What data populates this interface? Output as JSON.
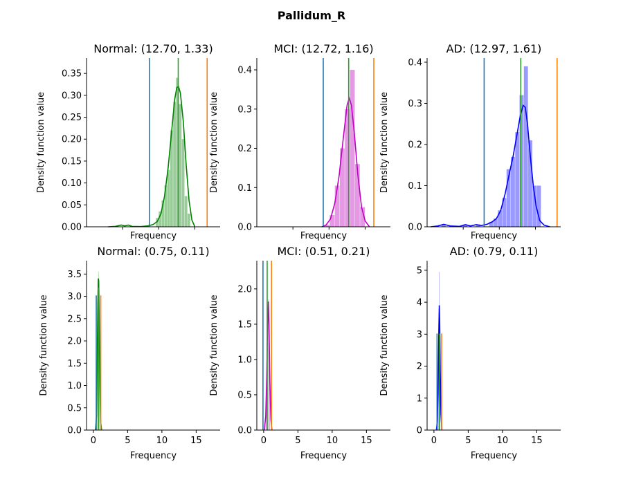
{
  "figure": {
    "suptitle": "Pallidum_R",
    "colors": {
      "Normal": "#008000",
      "MCI": "#bf00bf",
      "AD": "#0000ff",
      "line_blue": "#1f77b4",
      "line_green": "#2ca02c",
      "line_orange": "#ff7f0e"
    }
  },
  "chart_data": [
    {
      "type": "bar",
      "group": "Normal",
      "row": 0,
      "title": "Normal: (12.70, 1.33)",
      "xlabel": "Frequency",
      "ylabel": "Density function value",
      "xlim": [
        0,
        18.5
      ],
      "ylim": [
        0,
        0.385
      ],
      "yticks": [
        0.0,
        0.05,
        0.1,
        0.15,
        0.2,
        0.25,
        0.3,
        0.35
      ],
      "ytick_labels": [
        "0.00",
        "0.05",
        "0.10",
        "0.15",
        "0.20",
        "0.25",
        "0.30",
        "0.35"
      ],
      "xticks": [
        5,
        10,
        15
      ],
      "xtick_labels": [
        "",
        "",
        ""
      ],
      "hist_bins": [
        {
          "x0": 9.6,
          "x1": 10.0,
          "h": 0.02
        },
        {
          "x0": 10.0,
          "x1": 10.4,
          "h": 0.035
        },
        {
          "x0": 10.4,
          "x1": 10.8,
          "h": 0.06
        },
        {
          "x0": 10.8,
          "x1": 11.2,
          "h": 0.095
        },
        {
          "x0": 11.2,
          "x1": 11.6,
          "h": 0.13
        },
        {
          "x0": 11.6,
          "x1": 12.0,
          "h": 0.22
        },
        {
          "x0": 12.0,
          "x1": 12.4,
          "h": 0.285
        },
        {
          "x0": 12.4,
          "x1": 12.8,
          "h": 0.34
        },
        {
          "x0": 12.8,
          "x1": 13.2,
          "h": 0.28
        },
        {
          "x0": 13.2,
          "x1": 13.6,
          "h": 0.2
        },
        {
          "x0": 13.6,
          "x1": 14.0,
          "h": 0.07
        },
        {
          "x0": 14.0,
          "x1": 14.4,
          "h": 0.03
        }
      ],
      "kde": [
        [
          3.0,
          0
        ],
        [
          4.0,
          0.001
        ],
        [
          4.8,
          0.004
        ],
        [
          5.3,
          0.002
        ],
        [
          5.8,
          0.004
        ],
        [
          6.3,
          0.001
        ],
        [
          7.5,
          0.0005
        ],
        [
          8.5,
          0.002
        ],
        [
          9.2,
          0.005
        ],
        [
          9.8,
          0.012
        ],
        [
          10.3,
          0.03
        ],
        [
          10.8,
          0.07
        ],
        [
          11.3,
          0.135
        ],
        [
          11.8,
          0.22
        ],
        [
          12.2,
          0.29
        ],
        [
          12.5,
          0.318
        ],
        [
          12.75,
          0.32
        ],
        [
          13.0,
          0.305
        ],
        [
          13.4,
          0.24
        ],
        [
          13.8,
          0.14
        ],
        [
          14.2,
          0.06
        ],
        [
          14.6,
          0.015
        ],
        [
          15.0,
          0
        ]
      ],
      "vlines": [
        {
          "x": 8.7,
          "color": "#1f77b4",
          "y": 0.385
        },
        {
          "x": 12.7,
          "color": "#2ca02c",
          "y": 0.385
        },
        {
          "x": 16.7,
          "color": "#ff7f0e",
          "y": 0.385
        }
      ]
    },
    {
      "type": "bar",
      "group": "MCI",
      "row": 0,
      "title": "MCI: (12.72, 1.16)",
      "xlabel": "Frequency",
      "ylabel": "Density function value",
      "xlim": [
        0,
        18.5
      ],
      "ylim": [
        0,
        0.43
      ],
      "yticks": [
        0.0,
        0.1,
        0.2,
        0.3,
        0.4
      ],
      "ytick_labels": [
        "0.0",
        "0.1",
        "0.2",
        "0.3",
        "0.4"
      ],
      "xticks": [
        5,
        10,
        15
      ],
      "xtick_labels": [
        "",
        "",
        ""
      ],
      "hist_bins": [
        {
          "x0": 9.4,
          "x1": 10.1,
          "h": 0.005
        },
        {
          "x0": 10.1,
          "x1": 10.8,
          "h": 0.03
        },
        {
          "x0": 10.8,
          "x1": 11.5,
          "h": 0.105
        },
        {
          "x0": 11.5,
          "x1": 12.2,
          "h": 0.2
        },
        {
          "x0": 12.2,
          "x1": 12.9,
          "h": 0.3
        },
        {
          "x0": 12.9,
          "x1": 13.6,
          "h": 0.4
        },
        {
          "x0": 13.6,
          "x1": 14.3,
          "h": 0.16
        },
        {
          "x0": 14.3,
          "x1": 15.0,
          "h": 0.05
        }
      ],
      "kde": [
        [
          9.0,
          0
        ],
        [
          9.6,
          0.005
        ],
        [
          10.2,
          0.02
        ],
        [
          10.8,
          0.06
        ],
        [
          11.4,
          0.13
        ],
        [
          12.0,
          0.23
        ],
        [
          12.5,
          0.31
        ],
        [
          12.8,
          0.328
        ],
        [
          13.1,
          0.31
        ],
        [
          13.5,
          0.24
        ],
        [
          14.0,
          0.13
        ],
        [
          14.5,
          0.05
        ],
        [
          15.0,
          0.015
        ],
        [
          15.6,
          0
        ]
      ],
      "vlines": [
        {
          "x": 9.2,
          "color": "#1f77b4",
          "y": 0.43
        },
        {
          "x": 12.72,
          "color": "#2ca02c",
          "y": 0.43
        },
        {
          "x": 16.2,
          "color": "#ff7f0e",
          "y": 0.43
        }
      ]
    },
    {
      "type": "bar",
      "group": "AD",
      "row": 0,
      "title": "AD: (12.97, 1.61)",
      "xlabel": "Frequency",
      "ylabel": "Density function value",
      "xlim": [
        0,
        18.5
      ],
      "ylim": [
        0,
        0.41
      ],
      "yticks": [
        0.0,
        0.1,
        0.2,
        0.3,
        0.4
      ],
      "ytick_labels": [
        "0.0",
        "0.1",
        "0.2",
        "0.3",
        "0.4"
      ],
      "xticks": [
        5,
        10,
        15
      ],
      "xtick_labels": [
        "",
        "",
        ""
      ],
      "hist_bins": [
        {
          "x0": 2.0,
          "x1": 2.6,
          "h": 0.006
        },
        {
          "x0": 5.0,
          "x1": 5.6,
          "h": 0.006
        },
        {
          "x0": 6.8,
          "x1": 7.4,
          "h": 0.006
        },
        {
          "x0": 8.6,
          "x1": 9.2,
          "h": 0.012
        },
        {
          "x0": 9.2,
          "x1": 9.8,
          "h": 0.02
        },
        {
          "x0": 9.8,
          "x1": 10.4,
          "h": 0.04
        },
        {
          "x0": 10.4,
          "x1": 11.0,
          "h": 0.07
        },
        {
          "x0": 11.0,
          "x1": 11.6,
          "h": 0.14
        },
        {
          "x0": 11.6,
          "x1": 12.2,
          "h": 0.17
        },
        {
          "x0": 12.2,
          "x1": 12.8,
          "h": 0.23
        },
        {
          "x0": 12.8,
          "x1": 13.4,
          "h": 0.32
        },
        {
          "x0": 13.4,
          "x1": 14.0,
          "h": 0.39
        },
        {
          "x0": 14.0,
          "x1": 14.6,
          "h": 0.21
        },
        {
          "x0": 14.6,
          "x1": 15.2,
          "h": 0.1
        },
        {
          "x0": 15.2,
          "x1": 15.8,
          "h": 0.1
        }
      ],
      "kde": [
        [
          0.5,
          0
        ],
        [
          1.5,
          0.002
        ],
        [
          2.3,
          0.006
        ],
        [
          3.2,
          0.002
        ],
        [
          4.5,
          0.001
        ],
        [
          5.3,
          0.005
        ],
        [
          6.0,
          0.002
        ],
        [
          6.8,
          0.005
        ],
        [
          7.5,
          0.003
        ],
        [
          8.3,
          0.006
        ],
        [
          9.0,
          0.012
        ],
        [
          9.6,
          0.02
        ],
        [
          10.2,
          0.04
        ],
        [
          10.8,
          0.08
        ],
        [
          11.4,
          0.13
        ],
        [
          11.9,
          0.17
        ],
        [
          12.4,
          0.22
        ],
        [
          12.9,
          0.27
        ],
        [
          13.3,
          0.295
        ],
        [
          13.6,
          0.29
        ],
        [
          13.9,
          0.25
        ],
        [
          14.3,
          0.17
        ],
        [
          14.7,
          0.1
        ],
        [
          15.1,
          0.05
        ],
        [
          15.6,
          0.015
        ],
        [
          16.2,
          0.004
        ],
        [
          17.0,
          0
        ]
      ],
      "vlines": [
        {
          "x": 7.9,
          "color": "#1f77b4",
          "y": 0.41
        },
        {
          "x": 12.97,
          "color": "#2ca02c",
          "y": 0.41
        },
        {
          "x": 18.0,
          "color": "#ff7f0e",
          "y": 0.41
        }
      ]
    },
    {
      "type": "bar",
      "group": "Normal",
      "row": 1,
      "title": "Normal: (0.75, 0.11)",
      "xlabel": "Frequency",
      "ylabel": "Density function value",
      "xlim": [
        -1,
        18.5
      ],
      "ylim": [
        0,
        3.8
      ],
      "yticks": [
        0.0,
        0.5,
        1.0,
        1.5,
        2.0,
        2.5,
        3.0,
        3.5
      ],
      "ytick_labels": [
        "0.0",
        "0.5",
        "1.0",
        "1.5",
        "2.0",
        "2.5",
        "3.0",
        "3.5"
      ],
      "xticks": [
        0,
        5,
        10,
        15
      ],
      "xtick_labels": [
        "0",
        "5",
        "10",
        "15"
      ],
      "hist_bins": [
        {
          "x0": 0.55,
          "x1": 0.65,
          "h": 1.3
        },
        {
          "x0": 0.65,
          "x1": 0.75,
          "h": 3.3
        },
        {
          "x0": 0.75,
          "x1": 0.85,
          "h": 3.55
        },
        {
          "x0": 0.85,
          "x1": 0.95,
          "h": 1.8
        }
      ],
      "kde": [
        [
          0.3,
          0
        ],
        [
          0.45,
          0.3
        ],
        [
          0.55,
          1.3
        ],
        [
          0.65,
          2.8
        ],
        [
          0.72,
          3.4
        ],
        [
          0.78,
          3.35
        ],
        [
          0.85,
          2.5
        ],
        [
          0.95,
          1.0
        ],
        [
          1.05,
          0.2
        ],
        [
          1.2,
          0
        ]
      ],
      "vlines": [
        {
          "x": 0.42,
          "color": "#1f77b4",
          "y": 3.02
        },
        {
          "x": 0.75,
          "color": "#2ca02c",
          "y": 3.2
        },
        {
          "x": 1.08,
          "color": "#ff7f0e",
          "y": 3.02
        }
      ]
    },
    {
      "type": "bar",
      "group": "MCI",
      "row": 1,
      "title": "MCI: (0.51, 0.21)",
      "xlabel": "Frequency",
      "ylabel": "Density function value",
      "xlim": [
        -1,
        18.5
      ],
      "ylim": [
        0,
        2.4
      ],
      "yticks": [
        0.0,
        0.5,
        1.0,
        1.5,
        2.0
      ],
      "ytick_labels": [
        "0.0",
        "0.5",
        "1.0",
        "1.5",
        "2.0"
      ],
      "xticks": [
        0,
        5,
        10,
        15
      ],
      "xtick_labels": [
        "0",
        "5",
        "10",
        "15"
      ],
      "hist_bins": [
        {
          "x0": 0.35,
          "x1": 0.5,
          "h": 0.6
        },
        {
          "x0": 0.5,
          "x1": 0.65,
          "h": 1.4
        },
        {
          "x0": 0.65,
          "x1": 0.8,
          "h": 1.85
        },
        {
          "x0": 0.8,
          "x1": 0.95,
          "h": 0.9
        }
      ],
      "kde": [
        [
          0.1,
          0
        ],
        [
          0.3,
          0.2
        ],
        [
          0.45,
          0.8
        ],
        [
          0.58,
          1.5
        ],
        [
          0.68,
          1.82
        ],
        [
          0.78,
          1.5
        ],
        [
          0.9,
          0.7
        ],
        [
          1.05,
          0.15
        ],
        [
          1.2,
          0
        ]
      ],
      "vlines": [
        {
          "x": -0.1,
          "color": "#1f77b4",
          "y": 2.4
        },
        {
          "x": 0.51,
          "color": "#2ca02c",
          "y": 2.4
        },
        {
          "x": 1.14,
          "color": "#ff7f0e",
          "y": 2.4
        }
      ]
    },
    {
      "type": "bar",
      "group": "AD",
      "row": 1,
      "title": "AD: (0.79, 0.11)",
      "xlabel": "Frequency",
      "ylabel": "Density function value",
      "xlim": [
        -1,
        18.5
      ],
      "ylim": [
        0,
        5.3
      ],
      "yticks": [
        0,
        1,
        2,
        3,
        4,
        5
      ],
      "ytick_labels": [
        "0",
        "1",
        "2",
        "3",
        "4",
        "5"
      ],
      "xticks": [
        0,
        5,
        10,
        15
      ],
      "xtick_labels": [
        "0",
        "5",
        "10",
        "15"
      ],
      "hist_bins": [
        {
          "x0": 0.55,
          "x1": 0.65,
          "h": 0.8
        },
        {
          "x0": 0.65,
          "x1": 0.75,
          "h": 3.0
        },
        {
          "x0": 0.75,
          "x1": 0.85,
          "h": 4.95
        },
        {
          "x0": 0.85,
          "x1": 0.95,
          "h": 1.8
        }
      ],
      "kde": [
        [
          0.35,
          0
        ],
        [
          0.5,
          0.3
        ],
        [
          0.6,
          1.2
        ],
        [
          0.7,
          2.9
        ],
        [
          0.78,
          3.9
        ],
        [
          0.84,
          3.4
        ],
        [
          0.92,
          1.8
        ],
        [
          1.02,
          0.5
        ],
        [
          1.15,
          0
        ]
      ],
      "vlines": [
        {
          "x": 0.45,
          "color": "#1f77b4",
          "y": 3.02
        },
        {
          "x": 0.79,
          "color": "#2ca02c",
          "y": 3.02
        },
        {
          "x": 1.12,
          "color": "#ff7f0e",
          "y": 3.02
        }
      ]
    }
  ]
}
